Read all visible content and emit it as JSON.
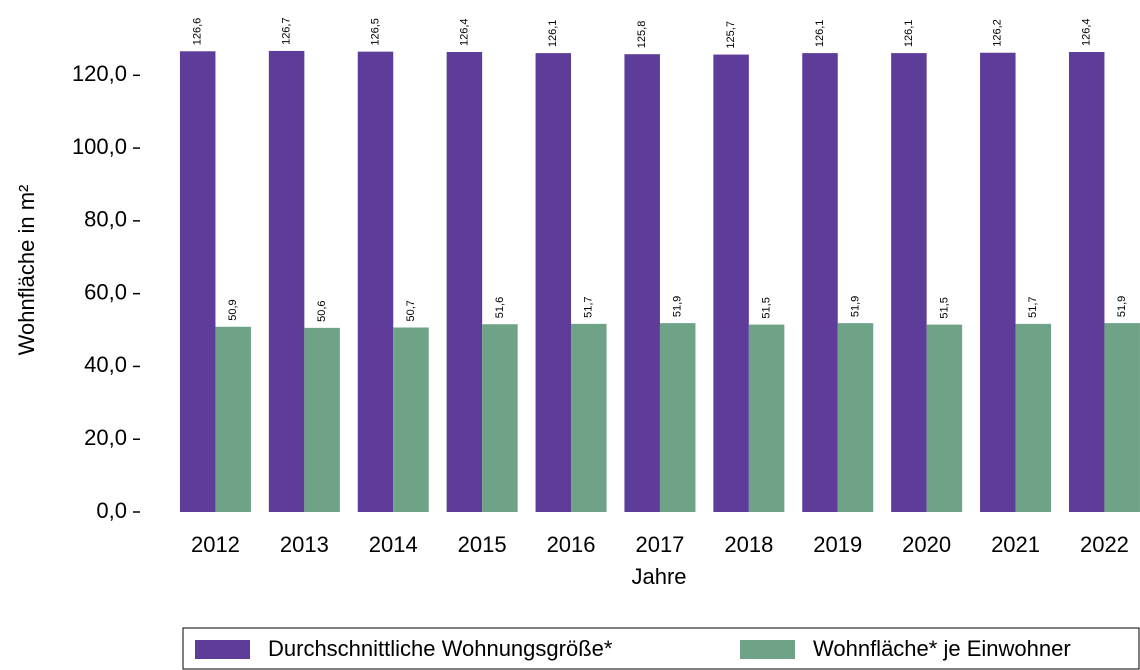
{
  "chart_data": {
    "type": "bar",
    "categories": [
      "2012",
      "2013",
      "2014",
      "2015",
      "2016",
      "2017",
      "2018",
      "2019",
      "2020",
      "2021",
      "2022"
    ],
    "series": [
      {
        "name": "Durchschnittliche Wohnungsgröße*",
        "color": "#5e3c99",
        "values": [
          126.6,
          126.7,
          126.5,
          126.4,
          126.1,
          125.8,
          125.7,
          126.1,
          126.1,
          126.2,
          126.4
        ],
        "value_labels": [
          "126,6",
          "126,7",
          "126,5",
          "126,4",
          "126,1",
          "125,8",
          "125,7",
          "126,1",
          "126,1",
          "126,2",
          "126,4"
        ]
      },
      {
        "name": "Wohnfläche* je Einwohner",
        "color": "#6ea387",
        "values": [
          50.9,
          50.6,
          50.7,
          51.6,
          51.7,
          51.9,
          51.5,
          51.9,
          51.5,
          51.7,
          51.9
        ],
        "value_labels": [
          "50,9",
          "50,6",
          "50,7",
          "51,6",
          "51,7",
          "51,9",
          "51,5",
          "51,9",
          "51,5",
          "51,7",
          "51,9"
        ]
      }
    ],
    "xlabel": "Jahre",
    "ylabel": "Wohnfläche in m²",
    "ylim": [
      0,
      133
    ],
    "yticks": [
      {
        "value": 0,
        "label": "0,0"
      },
      {
        "value": 20,
        "label": "20,0"
      },
      {
        "value": 40,
        "label": "40,0"
      },
      {
        "value": 60,
        "label": "60,0"
      },
      {
        "value": 80,
        "label": "80,0"
      },
      {
        "value": 100,
        "label": "100,0"
      },
      {
        "value": 120,
        "label": "120,0"
      }
    ],
    "grid": false,
    "legend": "bottom"
  }
}
